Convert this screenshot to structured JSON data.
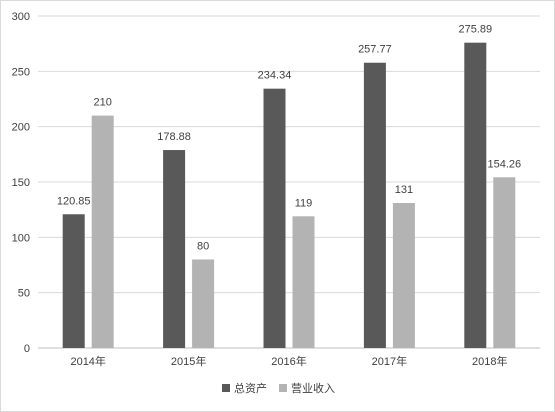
{
  "chart_data": {
    "type": "bar",
    "categories": [
      "2014年",
      "2015年",
      "2016年",
      "2017年",
      "2018年"
    ],
    "series": [
      {
        "name": "总资产",
        "values": [
          120.85,
          178.88,
          234.34,
          257.77,
          275.89
        ],
        "labels": [
          "120.85",
          "178.88",
          "234.34",
          "257.77",
          "275.89"
        ],
        "color": "#595959"
      },
      {
        "name": "营业收入",
        "values": [
          210,
          80,
          119,
          131,
          154.26
        ],
        "labels": [
          "210",
          "80",
          "119",
          "131",
          "154.26"
        ],
        "color": "#b3b3b3"
      }
    ],
    "ylim": [
      0,
      300
    ],
    "yticks": [
      "0",
      "50",
      "100",
      "150",
      "200",
      "250",
      "300"
    ],
    "grid": true,
    "legend": "bottom-center",
    "title": "",
    "xlabel": "",
    "ylabel": ""
  }
}
